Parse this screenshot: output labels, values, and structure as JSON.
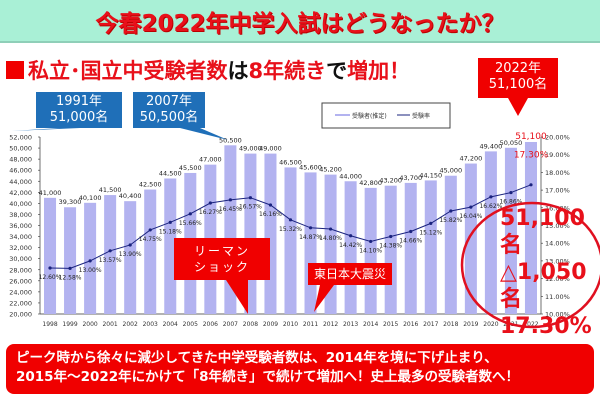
{
  "header": {
    "title": "今春2022年中学入試はどうなったか？",
    "background": "#a9f0d6",
    "title_color": "#e8101a"
  },
  "subtitle": {
    "square_icon": "red-square-bullet",
    "part1": "私立･国立中受験者数",
    "part2": "は",
    "part3": "8年続き",
    "part4": "で",
    "part5": "増加！"
  },
  "callouts": {
    "c1991_year": "1991年",
    "c1991_value": "51,000名",
    "c2007_year": "2007年",
    "c2007_value": "50,500名",
    "c2022_year": "2022年",
    "c2022_value": "51,100名",
    "lehman_line1": "リーマン",
    "lehman_line2": "ショック",
    "earthquake": "東日本大震災"
  },
  "summary": {
    "count": "51,100名",
    "change": "△1,050名",
    "rate": "17.30%"
  },
  "bottom_note": {
    "line1": "ピーク時から徐々に減少してきた中学受験者数は、2014年を境に下げ止まり、",
    "line2": "2015年～2022年にかけて「8年続き」で続けて増加へ！史上最多の受験者数へ！"
  },
  "colors": {
    "bar": "#b3b3f0",
    "line": "#1a237e",
    "accent_red": "#e8101a",
    "callout_blue": "#1f6fb8"
  },
  "chart_data": {
    "type": "bar",
    "title": "私立･国立中受験者数は8年続きで増加！",
    "xlabel": "",
    "ylabel": "",
    "categories": [
      "1998",
      "1999",
      "2000",
      "2001",
      "2002",
      "2003",
      "2004",
      "2005",
      "2006",
      "2007",
      "2008",
      "2009",
      "2010",
      "2011",
      "2012",
      "2013",
      "2014",
      "2015",
      "2016",
      "2017",
      "2018",
      "2019",
      "2020",
      "2021",
      "2022"
    ],
    "series": [
      {
        "name": "受験者(推定)",
        "type": "bar",
        "axis": "left",
        "values": [
          41000,
          39300,
          40100,
          41500,
          40400,
          42500,
          44500,
          45500,
          47000,
          50500,
          49000,
          49000,
          46500,
          45600,
          45200,
          44000,
          42800,
          43200,
          43700,
          44150,
          45000,
          47200,
          49400,
          50050,
          51100
        ],
        "labels": [
          "41,000",
          "39,300",
          "40,100",
          "41,500",
          "40,400",
          "42,500",
          "44,500",
          "45,500",
          "47,000",
          "50,500",
          "49,000",
          "49,000",
          "46,500",
          "45,600",
          "45,200",
          "44,000",
          "42,800",
          "43,200",
          "43,700",
          "44,150",
          "45,000",
          "47,200",
          "49,400",
          "50,050",
          "51,100"
        ]
      },
      {
        "name": "受験率",
        "type": "line",
        "axis": "right",
        "values": [
          12.6,
          12.58,
          13.0,
          13.57,
          13.9,
          14.75,
          15.18,
          15.66,
          16.27,
          16.45,
          16.57,
          16.16,
          15.32,
          14.87,
          14.8,
          14.42,
          14.1,
          14.38,
          14.66,
          15.12,
          15.82,
          16.04,
          16.62,
          16.86,
          17.3
        ],
        "labels": [
          "12.60%",
          "12.58%",
          "13.00%",
          "13.57%",
          "13.90%",
          "14.75%",
          "15.18%",
          "15.66%",
          "16.27%",
          "16.45%",
          "16.57%",
          "16.16%",
          "15.32%",
          "14.87%",
          "14.80%",
          "14.42%",
          "14.10%",
          "14.38%",
          "14.66%",
          "15.12%",
          "15.82%",
          "16.04%",
          "16.62%",
          "16.86%",
          "17.30%"
        ]
      }
    ],
    "ylim": [
      20000,
      52000
    ],
    "y_ticks": [
      "20,000",
      "22,000",
      "24,000",
      "26,000",
      "28,000",
      "30,000",
      "32,000",
      "34,000",
      "36,000",
      "38,000",
      "40,000",
      "42,000",
      "44,000",
      "46,000",
      "48,000",
      "50,000",
      "52,000"
    ],
    "y2lim": [
      10,
      20
    ],
    "y2_ticks": [
      "10.00%",
      "11.00%",
      "12.00%",
      "13.00%",
      "14.00%",
      "15.00%",
      "16.00%",
      "17.00%",
      "18.00%",
      "19.00%",
      "20.00%"
    ],
    "legend": [
      "受験者(推定)",
      "受験率"
    ],
    "legend_position": "top-center",
    "grid": false,
    "annotations": [
      "1991年 51,000名",
      "2007年 50,500名",
      "2022年 51,100名",
      "リーマンショック",
      "東日本大震災",
      "51,100名",
      "△1,050名",
      "17.30%"
    ]
  }
}
